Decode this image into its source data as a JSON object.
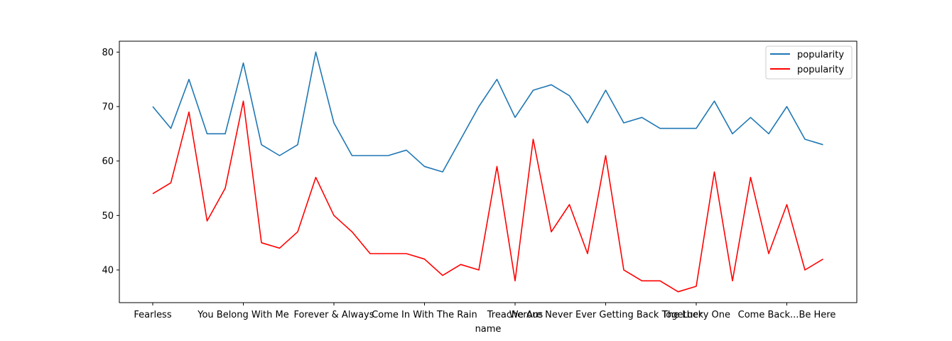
{
  "chart_data": {
    "type": "line",
    "xlabel": "name",
    "ylabel": "",
    "title": "",
    "ylim": [
      34,
      82
    ],
    "yticks": [
      40,
      50,
      60,
      70,
      80
    ],
    "grid": false,
    "legend_position": "top-right",
    "xtick_indices": [
      0,
      5,
      10,
      15,
      20,
      25,
      30,
      35
    ],
    "xtick_labels": [
      "Fearless",
      "You Belong With Me",
      "Forever & Always",
      "Come In With The Rain",
      "Treacherous",
      "We Are Never Ever Getting Back Together",
      "The Lucky One",
      "Come Back...Be Here"
    ],
    "x_count": 38,
    "series": [
      {
        "name": "popularity",
        "color": "#1f77b4",
        "values": [
          70,
          66,
          75,
          65,
          65,
          78,
          63,
          61,
          63,
          80,
          67,
          61,
          61,
          61,
          62,
          59,
          58,
          64,
          70,
          75,
          68,
          73,
          74,
          72,
          67,
          73,
          67,
          68,
          66,
          66,
          66,
          71,
          65,
          68,
          65,
          70,
          64,
          63
        ]
      },
      {
        "name": "popularity",
        "color": "#ff0000",
        "values": [
          54,
          56,
          69,
          49,
          55,
          71,
          45,
          44,
          47,
          57,
          50,
          47,
          43,
          43,
          43,
          42,
          39,
          41,
          40,
          59,
          38,
          64,
          47,
          52,
          43,
          61,
          40,
          38,
          38,
          36,
          37,
          58,
          38,
          57,
          43,
          52,
          40,
          42
        ]
      }
    ]
  }
}
